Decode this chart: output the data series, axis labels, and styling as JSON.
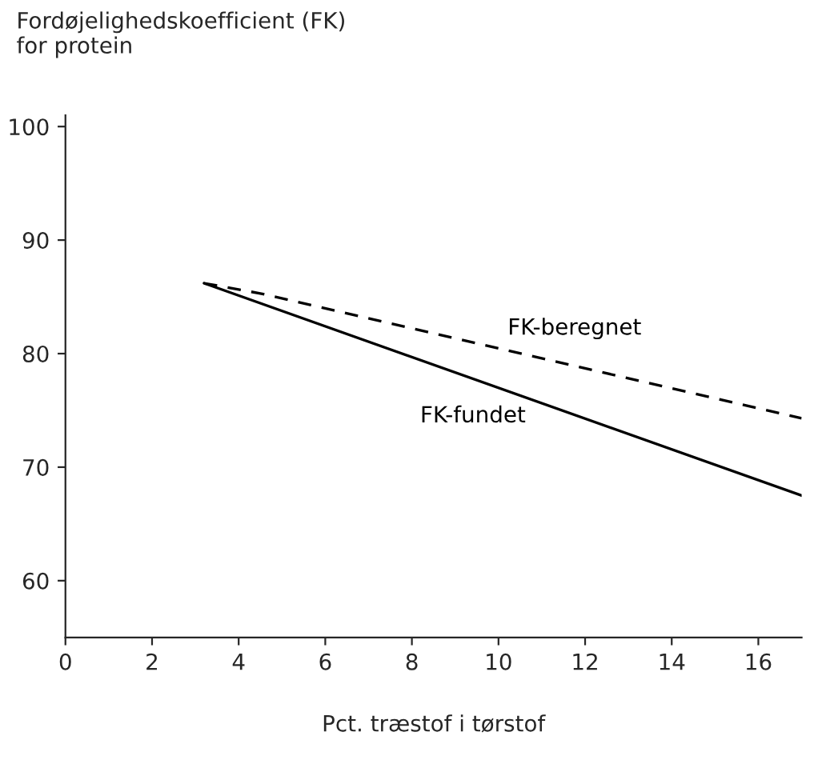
{
  "chart_data": {
    "type": "line",
    "ylabel": "Fordøjelighedskoefficient (FK)\nfor protein",
    "xlabel": "Pct. træstof i tørstof",
    "xlim": [
      0,
      17
    ],
    "ylim": [
      55,
      101
    ],
    "xticks": [
      0,
      2,
      4,
      6,
      8,
      10,
      12,
      14,
      16
    ],
    "yticks": [
      60,
      70,
      80,
      90,
      100
    ],
    "grid": false,
    "legend": false,
    "series": [
      {
        "name": "FK-beregnet",
        "color": "#000000",
        "line_style": "dashed",
        "x": [
          3.2,
          4.5,
          17
        ],
        "values": [
          86.2,
          85.3,
          74.3
        ]
      },
      {
        "name": "FK-fundet",
        "color": "#000000",
        "line_style": "solid",
        "x": [
          3.2,
          17
        ],
        "values": [
          86.2,
          67.5
        ]
      }
    ]
  }
}
